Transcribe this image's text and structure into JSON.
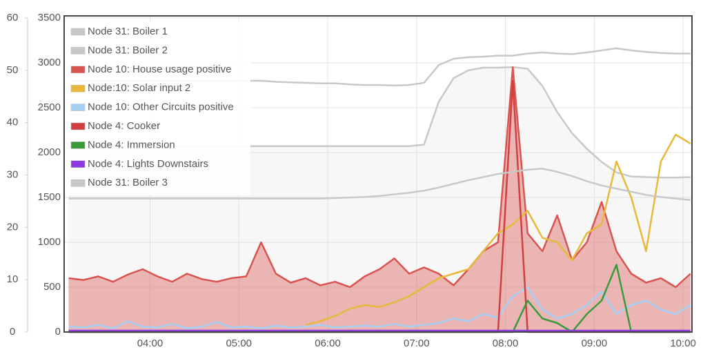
{
  "chart_data": {
    "type": "line",
    "x": [
      185,
      195,
      205,
      215,
      225,
      235,
      245,
      255,
      265,
      275,
      285,
      295,
      305,
      315,
      325,
      335,
      345,
      355,
      365,
      375,
      385,
      395,
      405,
      415,
      425,
      435,
      445,
      455,
      465,
      475,
      485,
      495,
      505,
      515,
      525,
      535,
      545,
      555,
      565,
      575,
      585,
      595,
      605
    ],
    "xlim": [
      182,
      606
    ],
    "xticks": [
      {
        "value": 240,
        "label": "04:00"
      },
      {
        "value": 300,
        "label": "05:00"
      },
      {
        "value": 360,
        "label": "06:00"
      },
      {
        "value": 420,
        "label": "07:00"
      },
      {
        "value": 480,
        "label": "08:00"
      },
      {
        "value": 540,
        "label": "09:00"
      },
      {
        "value": 600,
        "label": "10:00"
      }
    ],
    "ylim": [
      0,
      60
    ],
    "yticks": [
      0,
      10,
      20,
      30,
      40,
      50,
      60
    ],
    "y2lim": [
      0,
      3500
    ],
    "y2ticks": [
      0,
      500,
      1000,
      1500,
      2000,
      2500,
      3000,
      3500
    ],
    "grid": true,
    "legend": "top-left",
    "series": [
      {
        "name": "Node 31: Boiler 1",
        "color": "#c8c8c8",
        "values": [
          48,
          48,
          48,
          48,
          48,
          48,
          48,
          48,
          48,
          48,
          48,
          48,
          48,
          48,
          47.8,
          47.7,
          47.6,
          47.5,
          47.5,
          47.3,
          47.2,
          47.2,
          47.1,
          47.2,
          47.6,
          51,
          52.2,
          52.5,
          52.6,
          52.8,
          52.8,
          53.2,
          53.4,
          53.2,
          53.1,
          53.4,
          53.8,
          54.2,
          53.8,
          53.5,
          53.3,
          53.2,
          53.2
        ]
      },
      {
        "name": "Node 31: Boiler 2",
        "color": "#c8c8c8",
        "area": true,
        "values": [
          35.5,
          35.5,
          35.5,
          35.5,
          35.5,
          35.5,
          35.5,
          35.5,
          35.5,
          35.5,
          35.5,
          35.5,
          35.5,
          35.5,
          35.5,
          35.5,
          35.5,
          35.5,
          35.5,
          35.5,
          35.5,
          35.5,
          35.5,
          35.5,
          35.8,
          44,
          48.5,
          50,
          50.5,
          50.5,
          50.6,
          50.3,
          47,
          42,
          38,
          35,
          32.5,
          30.5,
          29.7,
          29.6,
          29.5,
          29.5,
          29.6
        ]
      },
      {
        "name": "Node 10: House usage positive",
        "color": "#d9534f",
        "axis": "y2",
        "area": true,
        "values": [
          600,
          580,
          620,
          560,
          640,
          700,
          620,
          560,
          650,
          590,
          560,
          600,
          620,
          1000,
          650,
          550,
          600,
          520,
          560,
          500,
          620,
          700,
          820,
          650,
          720,
          650,
          520,
          700,
          900,
          1000,
          2950,
          1100,
          900,
          1300,
          800,
          1000,
          1450,
          900,
          650,
          550,
          600,
          500,
          650
        ]
      },
      {
        "name": "Node:10: Solar input 2",
        "color": "#e8b83a",
        "axis": "y2",
        "values": [
          null,
          null,
          null,
          null,
          null,
          null,
          null,
          null,
          null,
          null,
          null,
          null,
          null,
          null,
          null,
          null,
          80,
          120,
          180,
          260,
          300,
          280,
          330,
          400,
          500,
          600,
          650,
          700,
          900,
          1100,
          1200,
          1350,
          1050,
          1000,
          800,
          1100,
          1200,
          1900,
          1500,
          900,
          1900,
          2200,
          2100
        ]
      },
      {
        "name": "Node 10: Other Circuits positive",
        "color": "#a6d0f5",
        "axis": "y2",
        "values": [
          60,
          50,
          80,
          40,
          120,
          60,
          50,
          90,
          40,
          60,
          110,
          50,
          60,
          40,
          70,
          50,
          60,
          80,
          50,
          60,
          70,
          60,
          90,
          60,
          80,
          100,
          150,
          120,
          200,
          160,
          400,
          500,
          250,
          150,
          200,
          300,
          450,
          200,
          300,
          350,
          250,
          200,
          300
        ]
      },
      {
        "name": "Node 4: Cooker",
        "color": "#d04040",
        "axis": "y2",
        "values": [
          0,
          0,
          0,
          0,
          0,
          0,
          0,
          0,
          0,
          0,
          0,
          0,
          0,
          0,
          0,
          0,
          0,
          0,
          0,
          0,
          0,
          0,
          0,
          0,
          0,
          0,
          0,
          0,
          0,
          0,
          2800,
          0,
          0,
          0,
          0,
          0,
          0,
          0,
          0,
          0,
          0,
          0,
          0
        ]
      },
      {
        "name": "Node 4: Immersion",
        "color": "#3a9a3a",
        "axis": "y2",
        "values": [
          0,
          0,
          0,
          0,
          0,
          0,
          0,
          0,
          0,
          0,
          0,
          0,
          0,
          0,
          0,
          0,
          0,
          0,
          0,
          0,
          0,
          0,
          0,
          0,
          0,
          0,
          0,
          0,
          0,
          0,
          0,
          350,
          150,
          100,
          0,
          200,
          350,
          750,
          0,
          0,
          0,
          0,
          0
        ]
      },
      {
        "name": "Node 4: Lights Downstairs",
        "color": "#8a3ae0",
        "axis": "y2",
        "values": [
          15,
          15,
          15,
          15,
          15,
          15,
          15,
          15,
          15,
          15,
          15,
          15,
          15,
          15,
          15,
          15,
          15,
          15,
          15,
          15,
          15,
          15,
          15,
          15,
          15,
          15,
          15,
          15,
          15,
          15,
          15,
          15,
          15,
          15,
          15,
          15,
          15,
          15,
          15,
          15,
          15,
          15,
          15
        ]
      },
      {
        "name": "Node 31: Boiler 3",
        "color": "#c8c8c8",
        "values": [
          25.5,
          25.5,
          25.5,
          25.5,
          25.5,
          25.5,
          25.5,
          25.5,
          25.5,
          25.5,
          25.5,
          25.5,
          25.5,
          25.5,
          25.5,
          25.5,
          25.5,
          25.5,
          25.6,
          25.7,
          25.8,
          26,
          26.3,
          26.6,
          27,
          27.6,
          28.3,
          29,
          29.6,
          30.2,
          30.6,
          31,
          31.2,
          30.6,
          29.8,
          28.8,
          28,
          27.4,
          26.8,
          26.2,
          25.8,
          25.5,
          25.2
        ]
      }
    ]
  }
}
